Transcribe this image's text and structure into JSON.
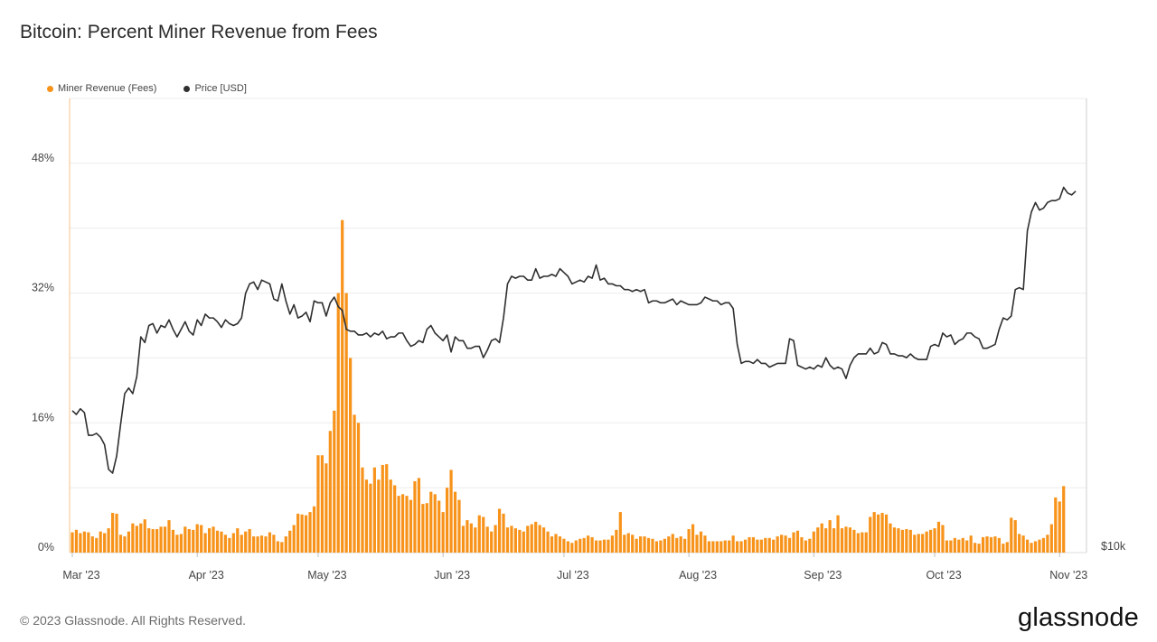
{
  "title": "Bitcoin: Percent Miner Revenue from Fees",
  "footer": "© 2023 Glassnode. All Rights Reserved.",
  "logo": "glassnode",
  "colors": {
    "fees": "#f7931a",
    "price": "#2f2f2f",
    "grid": "#ececec"
  },
  "chart_data": {
    "type": "bar",
    "legend_placement": "top-left",
    "grid": true,
    "series": [
      {
        "name": "Miner Revenue (Fees)",
        "type": "bar",
        "axis": "left",
        "color": "#f7931a"
      },
      {
        "name": "Price [USD]",
        "type": "line",
        "axis": "right",
        "color": "#2f2f2f"
      }
    ],
    "x_start": "2023-03-01",
    "x_end": "2023-11-07",
    "x_ticks": [
      "Mar '23",
      "Apr '23",
      "May '23",
      "Jun '23",
      "Jul '23",
      "Aug '23",
      "Sep '23",
      "Oct '23",
      "Nov '23"
    ],
    "y_left": {
      "ylim": [
        0,
        56
      ],
      "ticks": [
        0,
        16,
        32,
        48
      ],
      "tick_labels": [
        "0%",
        "16%",
        "32%",
        "48%"
      ]
    },
    "y_right": {
      "tick_labels": [
        "$10k"
      ]
    },
    "fees_pct": [
      2.5,
      2.8,
      2.4,
      2.6,
      2.5,
      2.0,
      1.8,
      2.6,
      2.4,
      3.0,
      4.9,
      4.8,
      2.2,
      2.0,
      2.6,
      3.6,
      3.3,
      3.6,
      4.1,
      3.0,
      2.9,
      2.9,
      3.2,
      3.2,
      4.0,
      2.8,
      2.2,
      2.3,
      3.2,
      2.9,
      2.8,
      3.5,
      3.4,
      2.4,
      3.0,
      3.2,
      2.7,
      2.6,
      2.2,
      1.8,
      2.4,
      3.0,
      2.2,
      2.6,
      2.9,
      2.0,
      2.0,
      2.1,
      2.0,
      2.5,
      2.2,
      1.4,
      1.3,
      2.0,
      2.7,
      3.4,
      4.8,
      4.7,
      4.6,
      5.0,
      5.7,
      12.0,
      12.0,
      11.0,
      15.0,
      17.5,
      32.0,
      41.0,
      32.0,
      24.0,
      17.0,
      16.0,
      10.5,
      9.0,
      8.5,
      10.5,
      9.0,
      10.8,
      10.9,
      9.0,
      8.3,
      7.0,
      7.2,
      7.0,
      6.5,
      8.8,
      9.2,
      6.0,
      6.1,
      7.5,
      7.2,
      6.4,
      5.0,
      8.0,
      10.2,
      7.5,
      6.5,
      3.3,
      4.0,
      3.6,
      3.1,
      4.6,
      4.4,
      3.2,
      2.6,
      3.4,
      5.4,
      4.8,
      3.1,
      3.3,
      3.0,
      2.8,
      2.6,
      3.3,
      3.5,
      3.8,
      3.4,
      3.1,
      2.6,
      2.0,
      2.3,
      2.0,
      1.7,
      1.4,
      1.2,
      1.5,
      1.7,
      1.8,
      2.1,
      1.9,
      1.5,
      1.5,
      1.6,
      1.6,
      2.1,
      2.8,
      5.0,
      2.2,
      2.4,
      2.2,
      1.7,
      2.0,
      2.0,
      1.8,
      1.7,
      1.4,
      1.5,
      1.7,
      2.0,
      2.3,
      1.8,
      2.0,
      1.7,
      2.9,
      3.5,
      2.2,
      2.6,
      2.1,
      1.4,
      1.4,
      1.4,
      1.4,
      1.5,
      1.5,
      2.1,
      1.4,
      1.4,
      1.6,
      1.9,
      1.9,
      1.6,
      1.6,
      1.8,
      1.8,
      1.6,
      2.0,
      2.2,
      2.1,
      1.8,
      2.5,
      2.7,
      1.9,
      1.5,
      1.7,
      2.6,
      3.1,
      3.6,
      3.0,
      4.0,
      3.0,
      4.6,
      3.0,
      3.2,
      3.1,
      2.8,
      2.4,
      2.5,
      2.5,
      4.4,
      5.0,
      4.7,
      4.9,
      4.7,
      3.6,
      3.1,
      3.0,
      2.8,
      2.9,
      2.8,
      2.2,
      2.3,
      2.3,
      2.6,
      2.8,
      3.0,
      3.8,
      3.4,
      1.5,
      1.5,
      1.8,
      1.6,
      1.8,
      1.5,
      2.1,
      1.2,
      1.1,
      1.9,
      2.0,
      1.9,
      2.0,
      1.8,
      1.1,
      1.3,
      4.3,
      4.0,
      2.3,
      2.1,
      1.6,
      1.2,
      1.4,
      1.6,
      1.8,
      2.2,
      3.5,
      6.8,
      6.3,
      8.2
    ],
    "price_usd": [
      23500,
      23300,
      23600,
      23400,
      22200,
      22200,
      22300,
      22100,
      21700,
      20400,
      20200,
      21100,
      22800,
      24400,
      24700,
      24400,
      25300,
      27400,
      27100,
      28000,
      28100,
      27600,
      28000,
      27900,
      28300,
      27800,
      27400,
      27800,
      28200,
      27700,
      27500,
      28300,
      28000,
      28600,
      28400,
      28400,
      28200,
      27900,
      28300,
      28100,
      28000,
      28100,
      28400,
      29700,
      30200,
      30300,
      29900,
      30400,
      30300,
      30200,
      29400,
      29300,
      30200,
      29300,
      28600,
      29100,
      28400,
      28500,
      28700,
      28200,
      29300,
      29200,
      29200,
      28500,
      29200,
      29500,
      29000,
      28800,
      27800,
      27700,
      27700,
      27500,
      27500,
      27600,
      27400,
      27600,
      27500,
      27700,
      27300,
      27400,
      27400,
      27600,
      27600,
      27200,
      26900,
      27000,
      27200,
      27100,
      27800,
      28000,
      27600,
      27400,
      27200,
      27500,
      26600,
      27400,
      27200,
      27200,
      26800,
      26800,
      26900,
      26900,
      26300,
      26700,
      27200,
      27300,
      27100,
      28400,
      30200,
      30600,
      30500,
      30600,
      30600,
      30400,
      30400,
      31000,
      30500,
      30600,
      30600,
      30700,
      30600,
      31000,
      30800,
      30600,
      30200,
      30300,
      30400,
      30300,
      30600,
      30500,
      31200,
      30400,
      30500,
      30200,
      30200,
      30100,
      30100,
      29900,
      29900,
      29800,
      29900,
      29800,
      29900,
      29200,
      29300,
      29300,
      29200,
      29200,
      29300,
      29400,
      29100,
      29300,
      29200,
      29100,
      29100,
      29100,
      29200,
      29500,
      29400,
      29300,
      29300,
      29100,
      29200,
      29200,
      28900,
      27000,
      26000,
      26100,
      26100,
      26000,
      26200,
      26000,
      26000,
      25800,
      25900,
      26000,
      26000,
      26000,
      27300,
      27200,
      25900,
      25800,
      25700,
      25800,
      25700,
      25900,
      25800,
      26300,
      25900,
      25700,
      25800,
      25700,
      25200,
      25900,
      26300,
      26500,
      26500,
      26500,
      26800,
      26500,
      26600,
      27100,
      27000,
      26500,
      26500,
      26400,
      26400,
      26300,
      26500,
      26300,
      26200,
      26200,
      26200,
      26900,
      27000,
      26900,
      27600,
      27400,
      27500,
      27000,
      27200,
      27300,
      27600,
      27600,
      27400,
      27300,
      26800,
      26800,
      26900,
      27000,
      27800,
      28400,
      28300,
      28500,
      29900,
      30000,
      29900,
      33000,
      34000,
      34500,
      34100,
      34200,
      34500,
      34600,
      34600,
      34700,
      35300,
      35000,
      34900,
      35100
    ]
  }
}
